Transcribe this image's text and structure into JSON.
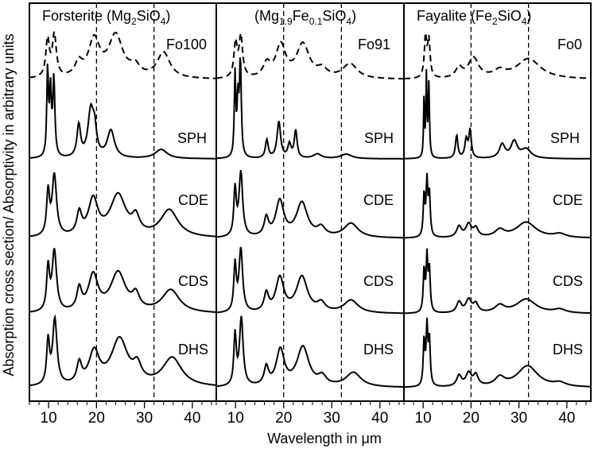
{
  "chart_data": {
    "type": "line",
    "xlabel": "Wavelength in μm",
    "ylabel": "Absorption cross section/ Absorptivity in arbitrary units",
    "xlim": [
      6,
      45
    ],
    "xticks": [
      10,
      20,
      30,
      40
    ],
    "xtick_labels": [
      "10",
      "20",
      "30",
      "40"
    ],
    "reference_lines": [
      20,
      32
    ],
    "panels": [
      {
        "title": {
          "pre": "Forsterite (Mg",
          "sub1": "2",
          "mid": "SiO",
          "sub2": "4",
          "post": ")"
        },
        "series": [
          {
            "name": "Fo100",
            "style": "dashed",
            "peaks": [
              [
                9.8,
                0.55,
                0.45
              ],
              [
                11.2,
                0.62,
                0.5
              ],
              [
                16.3,
                0.2,
                0.9
              ],
              [
                19.5,
                0.55,
                1.4
              ],
              [
                24,
                0.62,
                1.8
              ],
              [
                28,
                0.15,
                1.2
              ],
              [
                34,
                0.38,
                1.6
              ]
            ]
          },
          {
            "name": "SPH",
            "style": "solid",
            "peaks": [
              [
                9.8,
                0.95,
                0.2
              ],
              [
                10.4,
                0.7,
                0.22
              ],
              [
                11.1,
                0.85,
                0.25
              ],
              [
                16.3,
                0.35,
                0.45
              ],
              [
                18.8,
                0.5,
                0.7
              ],
              [
                19.6,
                0.25,
                0.5
              ],
              [
                23,
                0.3,
                0.9
              ],
              [
                33.5,
                0.1,
                1.5
              ]
            ]
          },
          {
            "name": "CDE",
            "style": "solid",
            "peaks": [
              [
                9.9,
                0.6,
                0.35
              ],
              [
                11.2,
                0.85,
                0.55
              ],
              [
                16.4,
                0.3,
                0.6
              ],
              [
                19.3,
                0.5,
                1.2
              ],
              [
                24.5,
                0.58,
                2.0
              ],
              [
                28.2,
                0.22,
                0.9
              ],
              [
                35.2,
                0.38,
                2.2
              ]
            ]
          },
          {
            "name": "CDS",
            "style": "solid",
            "peaks": [
              [
                9.9,
                0.6,
                0.35
              ],
              [
                11.2,
                0.85,
                0.55
              ],
              [
                16.4,
                0.3,
                0.6
              ],
              [
                19.3,
                0.5,
                1.2
              ],
              [
                24.5,
                0.55,
                1.9
              ],
              [
                28.2,
                0.2,
                0.9
              ],
              [
                35.5,
                0.32,
                2.2
              ]
            ]
          },
          {
            "name": "DHS",
            "style": "solid",
            "peaks": [
              [
                9.9,
                0.6,
                0.35
              ],
              [
                11.3,
                0.92,
                0.55
              ],
              [
                16.4,
                0.28,
                0.6
              ],
              [
                19.5,
                0.45,
                1.3
              ],
              [
                24.8,
                0.65,
                2.1
              ],
              [
                28.5,
                0.22,
                1.0
              ],
              [
                35.8,
                0.4,
                2.4
              ]
            ]
          }
        ]
      },
      {
        "title": {
          "pre": "(Mg",
          "sub1": "1.9",
          "mid": "Fe",
          "sub2": "0.1",
          "mid2": "SiO",
          "sub3": "4",
          "post": ")"
        },
        "series": [
          {
            "name": "Fo91",
            "style": "dashed",
            "peaks": [
              [
                10,
                0.5,
                0.4
              ],
              [
                11.1,
                0.6,
                0.45
              ],
              [
                16.5,
                0.2,
                0.9
              ],
              [
                19.4,
                0.48,
                1.2
              ],
              [
                24,
                0.5,
                1.6
              ],
              [
                28,
                0.12,
                1.2
              ],
              [
                33.8,
                0.22,
                1.8
              ]
            ]
          },
          {
            "name": "SPH",
            "style": "solid",
            "peaks": [
              [
                9.9,
                0.9,
                0.18
              ],
              [
                10.5,
                0.6,
                0.2
              ],
              [
                11,
                1.05,
                0.22
              ],
              [
                16.5,
                0.2,
                0.35
              ],
              [
                19,
                0.4,
                0.45
              ],
              [
                21.2,
                0.15,
                0.4
              ],
              [
                22.5,
                0.3,
                0.35
              ],
              [
                27,
                0.05,
                1.0
              ],
              [
                33,
                0.05,
                1.4
              ]
            ]
          },
          {
            "name": "CDE",
            "style": "solid",
            "peaks": [
              [
                9.9,
                0.65,
                0.3
              ],
              [
                11.1,
                0.9,
                0.45
              ],
              [
                16.4,
                0.25,
                0.55
              ],
              [
                19.2,
                0.5,
                1.0
              ],
              [
                23.8,
                0.48,
                1.4
              ],
              [
                27.8,
                0.12,
                1.0
              ],
              [
                34,
                0.2,
                1.8
              ]
            ]
          },
          {
            "name": "CDS",
            "style": "solid",
            "peaks": [
              [
                9.9,
                0.65,
                0.3
              ],
              [
                11.1,
                0.88,
                0.45
              ],
              [
                16.4,
                0.25,
                0.55
              ],
              [
                19.2,
                0.48,
                1.0
              ],
              [
                23.8,
                0.5,
                1.4
              ],
              [
                27.8,
                0.12,
                1.0
              ],
              [
                34,
                0.18,
                1.8
              ]
            ]
          },
          {
            "name": "DHS",
            "style": "solid",
            "peaks": [
              [
                9.9,
                0.7,
                0.3
              ],
              [
                11.2,
                0.95,
                0.45
              ],
              [
                16.4,
                0.25,
                0.55
              ],
              [
                19.3,
                0.5,
                1.0
              ],
              [
                24,
                0.55,
                1.5
              ],
              [
                28,
                0.12,
                1.0
              ],
              [
                34.5,
                0.2,
                1.9
              ]
            ]
          }
        ]
      },
      {
        "title": {
          "pre": "Fayalite (Fe",
          "sub1": "2",
          "mid": "SiO",
          "sub2": "4",
          "post": ")"
        },
        "series": [
          {
            "name": "Fo0",
            "style": "dashed",
            "peaks": [
              [
                10.5,
                0.6,
                0.3
              ],
              [
                11.2,
                0.55,
                0.3
              ],
              [
                17.5,
                0.15,
                0.8
              ],
              [
                20.5,
                0.3,
                1.3
              ],
              [
                26,
                0.1,
                1.5
              ],
              [
                32,
                0.3,
                3.0
              ]
            ]
          },
          {
            "name": "SPH",
            "style": "solid",
            "peaks": [
              [
                10.2,
                0.7,
                0.12
              ],
              [
                10.7,
                0.9,
                0.12
              ],
              [
                11.2,
                0.8,
                0.15
              ],
              [
                17,
                0.25,
                0.3
              ],
              [
                19,
                0.2,
                0.35
              ],
              [
                19.8,
                0.3,
                0.3
              ],
              [
                26.5,
                0.15,
                0.7
              ],
              [
                29,
                0.18,
                0.8
              ],
              [
                31.5,
                0.1,
                1.2
              ]
            ]
          },
          {
            "name": "CDE",
            "style": "solid",
            "peaks": [
              [
                10.2,
                0.6,
                0.2
              ],
              [
                10.8,
                0.75,
                0.2
              ],
              [
                11.3,
                0.6,
                0.22
              ],
              [
                17.5,
                0.15,
                0.6
              ],
              [
                19.5,
                0.18,
                0.7
              ],
              [
                21,
                0.12,
                0.6
              ],
              [
                26,
                0.1,
                1.2
              ],
              [
                31.5,
                0.22,
                2.5
              ],
              [
                38.5,
                0.05,
                1.5
              ]
            ]
          },
          {
            "name": "CDS",
            "style": "solid",
            "peaks": [
              [
                10.2,
                0.6,
                0.2
              ],
              [
                10.8,
                0.75,
                0.2
              ],
              [
                11.3,
                0.6,
                0.22
              ],
              [
                17.5,
                0.15,
                0.6
              ],
              [
                19.5,
                0.18,
                0.7
              ],
              [
                21,
                0.12,
                0.6
              ],
              [
                26,
                0.1,
                1.2
              ],
              [
                31.5,
                0.2,
                2.5
              ],
              [
                38.5,
                0.05,
                1.5
              ]
            ]
          },
          {
            "name": "DHS",
            "style": "solid",
            "peaks": [
              [
                10.2,
                0.65,
                0.2
              ],
              [
                10.8,
                0.8,
                0.2
              ],
              [
                11.3,
                0.65,
                0.22
              ],
              [
                17.5,
                0.15,
                0.6
              ],
              [
                19.5,
                0.18,
                0.7
              ],
              [
                21,
                0.15,
                0.6
              ],
              [
                26,
                0.12,
                1.2
              ],
              [
                31.8,
                0.3,
                2.6
              ],
              [
                38.5,
                0.05,
                1.5
              ]
            ]
          }
        ]
      }
    ]
  }
}
